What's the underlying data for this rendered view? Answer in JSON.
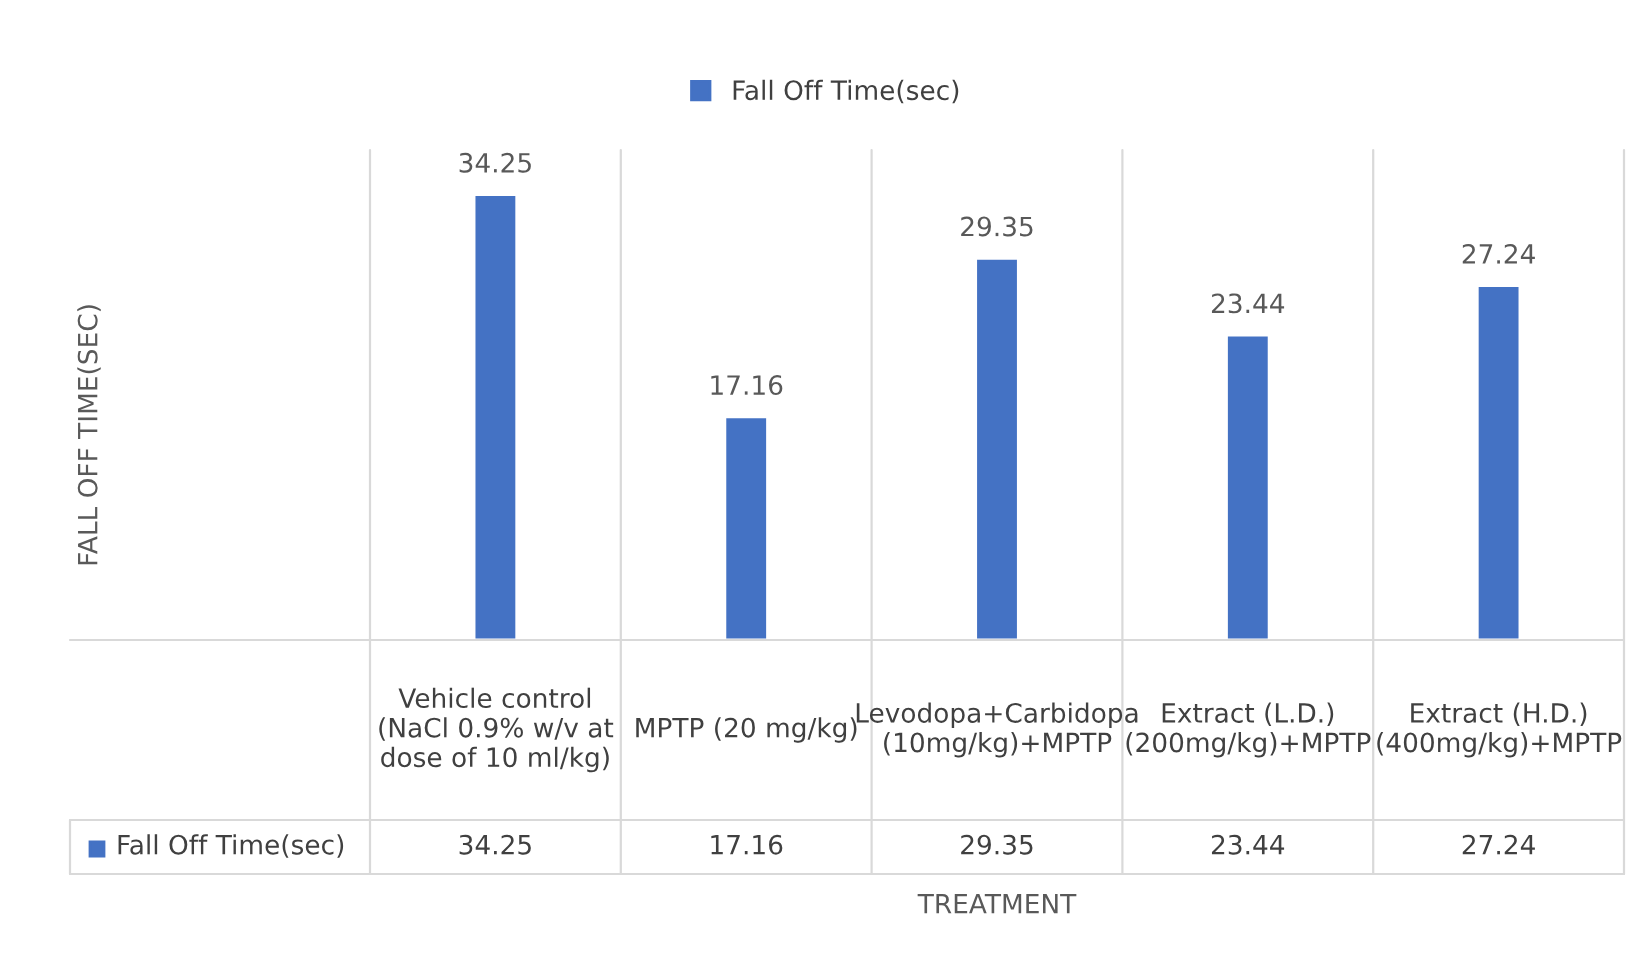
{
  "chart_data": {
    "type": "bar",
    "xlabel": "TREATMENT",
    "categories": [
      "Vehicle control (NaCl 0.9% w/v at dose of 10 ml/kg)",
      "MPTP (20 mg/kg)",
      "Levodopa+Carbidopa (10mg/kg)+MPTP",
      "Extract (L.D.) (200mg/kg)+MPTP",
      "Extract (H.D.) (400mg/kg)+MPTP"
    ],
    "series": [
      {
        "name": "Fall Off Time(sec)",
        "color": "#4472c4",
        "values": [
          34.25,
          17.16,
          29.35,
          23.44,
          27.24
        ],
        "value_labels": [
          "34.25",
          "17.16",
          "29.35",
          "23.44",
          "27.24"
        ]
      }
    ],
    "annotations": [
      "FALL OFF TIME(SEC)",
      "34.25",
      "17.16",
      "29.35",
      "23.44",
      "27.24"
    ],
    "legend": "top"
  }
}
